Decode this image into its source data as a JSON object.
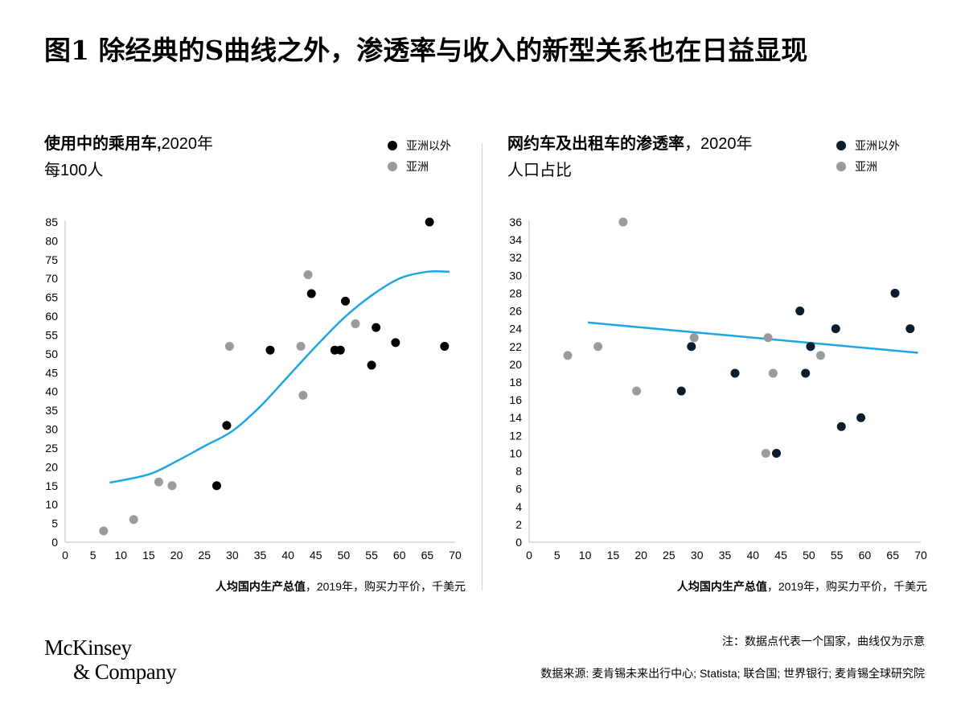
{
  "title": "图1 除经典的S曲线之外，渗透率与收入的新型关系也在日益显现",
  "legend": {
    "non_asia": "亚洲以外",
    "asia": "亚洲"
  },
  "colors": {
    "curve": "#1ba7e1",
    "asia": "#9b9b9b",
    "non_asia_left": "#000000",
    "non_asia_right": "#0b1c2c"
  },
  "chart_data": [
    {
      "type": "scatter",
      "title": "使用中的乘用车,",
      "title_suffix": "2020年",
      "subtitle": "每100人",
      "xlabel": "人均国内生产总值",
      "xlabel_suffix": "，2019年，购买力平价，千美元",
      "xlim": [
        0,
        70
      ],
      "ylim": [
        0,
        85
      ],
      "xticks": [
        0,
        5,
        10,
        15,
        20,
        25,
        30,
        35,
        40,
        45,
        50,
        55,
        60,
        65,
        70
      ],
      "yticks": [
        0,
        5,
        10,
        15,
        20,
        25,
        30,
        35,
        40,
        45,
        50,
        55,
        60,
        65,
        70,
        75,
        80,
        85
      ],
      "series": [
        {
          "name": "亚洲以外",
          "points": [
            [
              27.2,
              15
            ],
            [
              29.0,
              31
            ],
            [
              36.8,
              51
            ],
            [
              44.2,
              66
            ],
            [
              48.4,
              51
            ],
            [
              49.4,
              51
            ],
            [
              50.3,
              64
            ],
            [
              55.0,
              47
            ],
            [
              55.8,
              57
            ],
            [
              59.3,
              53
            ],
            [
              65.4,
              85
            ],
            [
              68.1,
              52
            ]
          ]
        },
        {
          "name": "亚洲",
          "points": [
            [
              6.9,
              3
            ],
            [
              12.3,
              6
            ],
            [
              16.8,
              16
            ],
            [
              19.2,
              15
            ],
            [
              29.5,
              52
            ],
            [
              42.3,
              52
            ],
            [
              42.7,
              39
            ],
            [
              43.6,
              71
            ],
            [
              52.1,
              58
            ]
          ]
        }
      ],
      "trend": {
        "kind": "S-curve",
        "points": [
          [
            8,
            15.8
          ],
          [
            15,
            18
          ],
          [
            20,
            21.5
          ],
          [
            25,
            25.5
          ],
          [
            30,
            29.5
          ],
          [
            35,
            36
          ],
          [
            40,
            44
          ],
          [
            45,
            52
          ],
          [
            50,
            59.5
          ],
          [
            55,
            65.5
          ],
          [
            60,
            70
          ],
          [
            65,
            71.8
          ],
          [
            69,
            71.8
          ]
        ]
      }
    },
    {
      "type": "scatter",
      "title": "网约车及出租车的渗透率",
      "title_suffix": "，2020年",
      "subtitle": "人口占比",
      "xlabel": "人均国内生产总值",
      "xlabel_suffix": "，2019年，购买力平价，千美元",
      "xlim": [
        0,
        70
      ],
      "ylim": [
        0,
        36
      ],
      "xticks": [
        0,
        5,
        10,
        15,
        20,
        25,
        30,
        35,
        40,
        45,
        50,
        55,
        60,
        65,
        70
      ],
      "yticks": [
        0,
        2,
        4,
        6,
        8,
        10,
        12,
        14,
        16,
        18,
        20,
        22,
        24,
        26,
        28,
        30,
        32,
        34,
        36
      ],
      "series": [
        {
          "name": "亚洲以外",
          "points": [
            [
              27.2,
              17
            ],
            [
              29.0,
              22
            ],
            [
              36.8,
              19
            ],
            [
              44.2,
              10
            ],
            [
              48.4,
              26
            ],
            [
              49.4,
              19
            ],
            [
              50.3,
              22
            ],
            [
              54.8,
              24
            ],
            [
              55.8,
              13
            ],
            [
              59.3,
              14
            ],
            [
              65.4,
              28
            ],
            [
              68.1,
              24
            ]
          ]
        },
        {
          "name": "亚洲",
          "points": [
            [
              6.9,
              21
            ],
            [
              12.3,
              22
            ],
            [
              16.8,
              36
            ],
            [
              19.2,
              17
            ],
            [
              29.5,
              23
            ],
            [
              42.3,
              10
            ],
            [
              42.7,
              23
            ],
            [
              43.6,
              19
            ],
            [
              52.1,
              21
            ]
          ]
        }
      ],
      "trend": {
        "kind": "linear",
        "points": [
          [
            10.5,
            24.7
          ],
          [
            69.5,
            21.3
          ]
        ]
      }
    }
  ],
  "footnote": "注：数据点代表一个国家，曲线仅为示意",
  "source": "数据来源: 麦肯锡未来出行中心; Statista; 联合国; 世界银行; 麦肯锡全球研究院",
  "logo": {
    "line1": "McKinsey",
    "line2": "& Company"
  }
}
